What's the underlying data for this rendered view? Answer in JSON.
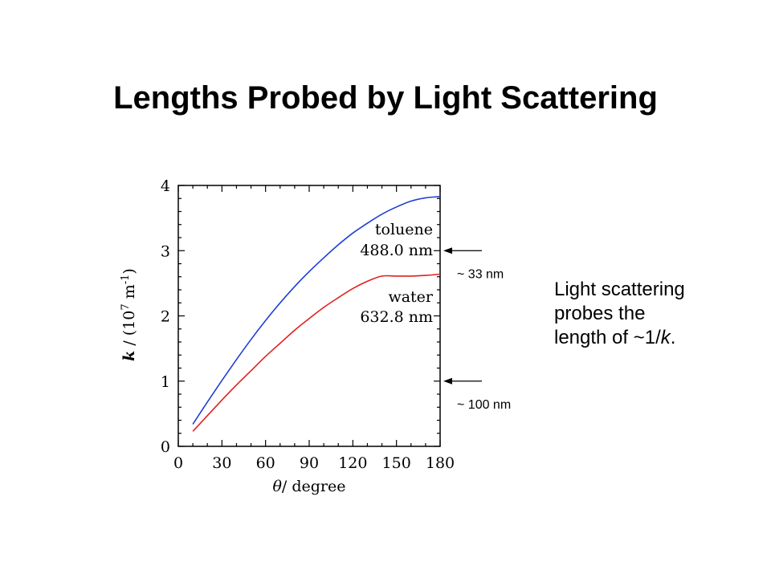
{
  "slide": {
    "title": "Lengths Probed by Light Scattering",
    "note": {
      "line1": "Light scattering",
      "line2": "probes the",
      "line3_prefix": "length of ~1/",
      "line3_var": "k",
      "line3_suffix": "."
    }
  },
  "colors": {
    "toluene": "#1f3fd6",
    "water": "#e02020",
    "axes": "#000000"
  },
  "chart_data": {
    "type": "line",
    "xlabel_var": "θ",
    "xlabel_rest": "/ degree",
    "ylabel_var": "k",
    "ylabel_rest": " / (10",
    "ylabel_exp1": "7",
    "ylabel_mid": " m",
    "ylabel_exp2": "-1",
    "ylabel_end": ")",
    "xlim": [
      0,
      180
    ],
    "ylim": [
      0,
      4
    ],
    "xticks": [
      "0",
      "30",
      "60",
      "90",
      "120",
      "150",
      "180"
    ],
    "yticks": [
      "0",
      "1",
      "2",
      "3",
      "4"
    ],
    "x": [
      10,
      20,
      30,
      40,
      50,
      60,
      70,
      80,
      90,
      100,
      110,
      120,
      130,
      140,
      150,
      160,
      170,
      180
    ],
    "series": [
      {
        "name": "toluene",
        "label_line1": "toluene",
        "label_line2": "488.0 nm",
        "values": [
          0.34,
          0.68,
          1.01,
          1.33,
          1.64,
          1.93,
          2.2,
          2.45,
          2.68,
          2.89,
          3.09,
          3.27,
          3.42,
          3.56,
          3.67,
          3.76,
          3.81,
          3.83
        ]
      },
      {
        "name": "water",
        "label_line1": "water",
        "label_line2": "632.8 nm",
        "values": [
          0.23,
          0.47,
          0.71,
          0.94,
          1.16,
          1.38,
          1.58,
          1.78,
          1.96,
          2.13,
          2.28,
          2.42,
          2.53,
          2.61,
          2.61,
          2.61,
          2.62,
          2.64
        ]
      }
    ],
    "annotations": [
      {
        "text": "~ 33 nm",
        "y": 3.0
      },
      {
        "text": "~ 100 nm",
        "y": 1.0
      }
    ]
  }
}
